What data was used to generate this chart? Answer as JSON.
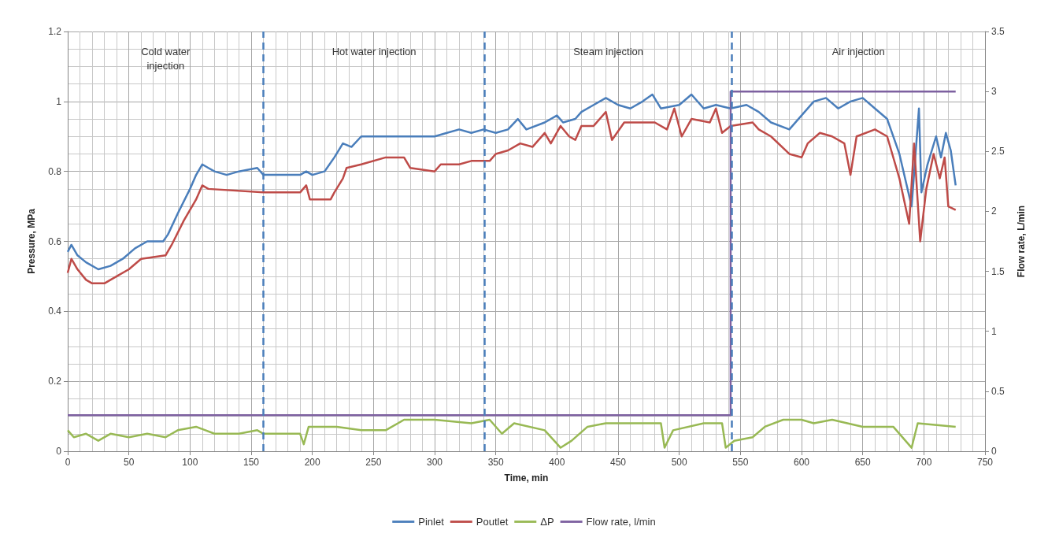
{
  "chart_data": {
    "type": "line",
    "xlabel": "Time, min",
    "ylabel": "Pressure, MPa",
    "y2label": "Flow rate, L/min",
    "xlim": [
      0,
      750
    ],
    "xticks": [
      0,
      50,
      100,
      150,
      200,
      250,
      300,
      350,
      400,
      450,
      500,
      550,
      600,
      650,
      700,
      750
    ],
    "ylim": [
      0,
      1.2
    ],
    "yticks": [
      0,
      0.2,
      0.4,
      0.6,
      0.8,
      1,
      1.2
    ],
    "y2lim": [
      0,
      3.5
    ],
    "y2ticks": [
      0,
      0.5,
      1,
      1.5,
      2,
      2.5,
      3,
      3.5
    ],
    "grid": true,
    "legend": "bottom",
    "ref_lines": [
      {
        "axis": "x",
        "value": 160,
        "color": "#4a7ebb",
        "line_style": "dashed"
      },
      {
        "axis": "x",
        "value": 341,
        "color": "#4a7ebb",
        "line_style": "dashed"
      },
      {
        "axis": "x",
        "value": 543,
        "color": "#4a7ebb",
        "line_style": "dashed"
      }
    ],
    "annotations": [
      "Cold water injection",
      "Hot water injection",
      "Steam injection",
      "Air injection"
    ],
    "series": [
      {
        "name": "Pinlet",
        "color": "#4a7ebb",
        "x": [
          0,
          3,
          8,
          15,
          25,
          35,
          45,
          55,
          65,
          78,
          82,
          90,
          100,
          105,
          110,
          115,
          120,
          130,
          140,
          155,
          160,
          190,
          195,
          200,
          210,
          218,
          225,
          232,
          240,
          250,
          300,
          310,
          320,
          330,
          340,
          350,
          360,
          368,
          375,
          390,
          400,
          405,
          415,
          420,
          430,
          440,
          450,
          460,
          470,
          478,
          485,
          500,
          510,
          520,
          530,
          542,
          555,
          565,
          575,
          590,
          600,
          610,
          620,
          630,
          640,
          650,
          660,
          670,
          680,
          690,
          696,
          698,
          703,
          710,
          714,
          718,
          722,
          726
        ],
        "values": [
          0.57,
          0.59,
          0.56,
          0.54,
          0.52,
          0.53,
          0.55,
          0.58,
          0.6,
          0.6,
          0.62,
          0.68,
          0.75,
          0.79,
          0.82,
          0.81,
          0.8,
          0.79,
          0.8,
          0.81,
          0.79,
          0.79,
          0.8,
          0.79,
          0.8,
          0.84,
          0.88,
          0.87,
          0.9,
          0.9,
          0.9,
          0.91,
          0.92,
          0.91,
          0.92,
          0.91,
          0.92,
          0.95,
          0.92,
          0.94,
          0.96,
          0.94,
          0.95,
          0.97,
          0.99,
          1.01,
          0.99,
          0.98,
          1.0,
          1.02,
          0.98,
          0.99,
          1.02,
          0.98,
          0.99,
          0.98,
          0.99,
          0.97,
          0.94,
          0.92,
          0.96,
          1.0,
          1.01,
          0.98,
          1.0,
          1.01,
          0.98,
          0.95,
          0.85,
          0.7,
          0.98,
          0.74,
          0.82,
          0.9,
          0.84,
          0.91,
          0.86,
          0.76
        ]
      },
      {
        "name": "Poutlet",
        "color": "#be4b48",
        "x": [
          0,
          3,
          8,
          15,
          20,
          30,
          40,
          50,
          60,
          80,
          85,
          95,
          105,
          110,
          115,
          160,
          190,
          195,
          198,
          215,
          218,
          225,
          228,
          240,
          260,
          275,
          280,
          300,
          305,
          320,
          330,
          345,
          350,
          360,
          370,
          380,
          390,
          395,
          403,
          410,
          415,
          420,
          430,
          440,
          445,
          455,
          480,
          490,
          496,
          502,
          510,
          525,
          530,
          535,
          542,
          560,
          565,
          575,
          590,
          600,
          605,
          615,
          625,
          635,
          640,
          645,
          660,
          670,
          680,
          688,
          692,
          697,
          702,
          708,
          713,
          717,
          720,
          726
        ],
        "values": [
          0.51,
          0.55,
          0.52,
          0.49,
          0.48,
          0.48,
          0.5,
          0.52,
          0.55,
          0.56,
          0.59,
          0.66,
          0.72,
          0.76,
          0.75,
          0.74,
          0.74,
          0.76,
          0.72,
          0.72,
          0.74,
          0.78,
          0.81,
          0.82,
          0.84,
          0.84,
          0.81,
          0.8,
          0.82,
          0.82,
          0.83,
          0.83,
          0.85,
          0.86,
          0.88,
          0.87,
          0.91,
          0.88,
          0.93,
          0.9,
          0.89,
          0.93,
          0.93,
          0.97,
          0.89,
          0.94,
          0.94,
          0.92,
          0.98,
          0.9,
          0.95,
          0.94,
          0.98,
          0.91,
          0.93,
          0.94,
          0.92,
          0.9,
          0.85,
          0.84,
          0.88,
          0.91,
          0.9,
          0.88,
          0.79,
          0.9,
          0.92,
          0.9,
          0.78,
          0.65,
          0.88,
          0.6,
          0.75,
          0.85,
          0.78,
          0.84,
          0.7,
          0.69
        ]
      },
      {
        "name": "ΔP",
        "color": "#98b954",
        "x": [
          0,
          5,
          15,
          25,
          35,
          50,
          65,
          80,
          90,
          105,
          120,
          140,
          155,
          160,
          190,
          193,
          197,
          220,
          240,
          260,
          275,
          300,
          330,
          345,
          355,
          365,
          390,
          403,
          412,
          425,
          440,
          485,
          488,
          495,
          520,
          535,
          538,
          545,
          560,
          570,
          585,
          600,
          610,
          625,
          650,
          675,
          690,
          695,
          726
        ],
        "values": [
          0.06,
          0.04,
          0.05,
          0.03,
          0.05,
          0.04,
          0.05,
          0.04,
          0.06,
          0.07,
          0.05,
          0.05,
          0.06,
          0.05,
          0.05,
          0.02,
          0.07,
          0.07,
          0.06,
          0.06,
          0.09,
          0.09,
          0.08,
          0.09,
          0.05,
          0.08,
          0.06,
          0.01,
          0.03,
          0.07,
          0.08,
          0.08,
          0.01,
          0.06,
          0.08,
          0.08,
          0.01,
          0.03,
          0.04,
          0.07,
          0.09,
          0.09,
          0.08,
          0.09,
          0.07,
          0.07,
          0.01,
          0.08,
          0.07
        ]
      },
      {
        "name": "Flow rate, l/min",
        "type": "step",
        "axis": "y2",
        "color": "#7d60a0",
        "x": [
          0,
          542,
          726
        ],
        "values": [
          0.3,
          3,
          3
        ]
      }
    ]
  }
}
